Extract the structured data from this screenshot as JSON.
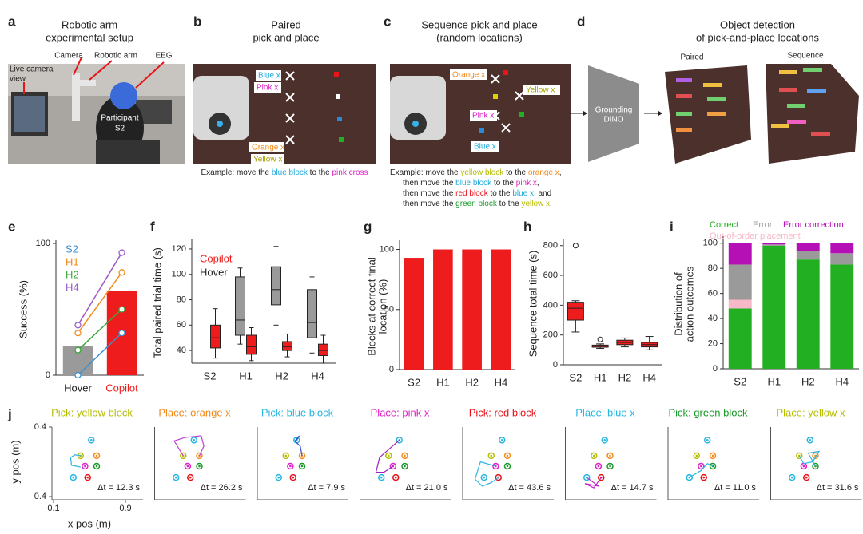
{
  "panels": {
    "a": {
      "letter": "a",
      "title": [
        "Robotic arm",
        "experimental setup"
      ],
      "labels": {
        "camera": "Camera",
        "robotic_arm": "Robotic arm",
        "eeg": "EEG",
        "live_view": [
          "Live camera",
          "view"
        ],
        "participant": [
          "Participant",
          "S2"
        ]
      }
    },
    "b": {
      "letter": "b",
      "title": [
        "Paired",
        "pick and place"
      ],
      "photo_labels": [
        "Blue x",
        "Pink x",
        "Orange x",
        "Yellow x"
      ],
      "caption": [
        [
          {
            "text": "Example: move the ",
            "color": "#222222"
          },
          {
            "text": "blue block",
            "color": "#1fa9dc"
          },
          {
            "text": " to the ",
            "color": "#222222"
          },
          {
            "text": "pink cross",
            "color": "#e020c8"
          }
        ]
      ]
    },
    "c": {
      "letter": "c",
      "title": [
        "Sequence pick and place",
        "(random locations)"
      ],
      "photo_labels": [
        "Orange x",
        "Yellow x",
        "Pink x",
        "Blue x"
      ],
      "caption": [
        [
          {
            "text": "Example: move the ",
            "color": "#222222"
          },
          {
            "text": "yellow block",
            "color": "#b5bd00"
          },
          {
            "text": " to the ",
            "color": "#222222"
          },
          {
            "text": "orange x",
            "color": "#f28a1c"
          },
          {
            "text": ",",
            "color": "#222222"
          }
        ],
        [
          {
            "text": "then move the ",
            "color": "#222222"
          },
          {
            "text": "blue block",
            "color": "#1fa9dc"
          },
          {
            "text": " to the ",
            "color": "#222222"
          },
          {
            "text": "pink x",
            "color": "#e020c8"
          },
          {
            "text": ",",
            "color": "#222222"
          }
        ],
        [
          {
            "text": "then move the ",
            "color": "#222222"
          },
          {
            "text": "red block",
            "color": "#e8141a"
          },
          {
            "text": " to the ",
            "color": "#222222"
          },
          {
            "text": "blue x",
            "color": "#1fa9dc"
          },
          {
            "text": ", and",
            "color": "#222222"
          }
        ],
        [
          {
            "text": "then move the ",
            "color": "#222222"
          },
          {
            "text": "green block",
            "color": "#1a9a2a"
          },
          {
            "text": " to the ",
            "color": "#222222"
          },
          {
            "text": "yellow x",
            "color": "#b5bd00"
          },
          {
            "text": ".",
            "color": "#222222"
          }
        ]
      ]
    },
    "d": {
      "letter": "d",
      "title": [
        "Object detection",
        "of pick-and-place locations"
      ],
      "model": [
        "Grounding",
        "DINO"
      ],
      "image_labels": [
        "Paired",
        "Sequence"
      ]
    }
  },
  "chart_data": [
    {
      "letter": "e",
      "type": "bar",
      "ylabel": "Success (%)",
      "ylim": [
        0,
        100
      ],
      "yticks": [
        0,
        100
      ],
      "categories": [
        "Hover",
        "Copilot"
      ],
      "values": [
        22,
        64
      ],
      "colors": [
        "#9a9a9a",
        "#ee1c1c"
      ],
      "label_colors": [
        "#222222",
        "#ee1c1c"
      ],
      "series": [
        {
          "name": "S2",
          "color": "#3a8fd0",
          "values": [
            0,
            32
          ]
        },
        {
          "name": "H1",
          "color": "#f28a1c",
          "values": [
            32,
            78
          ]
        },
        {
          "name": "H2",
          "color": "#3aa83a",
          "values": [
            19,
            50
          ]
        },
        {
          "name": "H4",
          "color": "#9b5bc9",
          "values": [
            38,
            93
          ]
        }
      ]
    },
    {
      "letter": "f",
      "type": "box",
      "ylabel": "Total paired trial time (s)",
      "ylim": [
        30,
        125
      ],
      "yticks": [
        40,
        60,
        80,
        100,
        120
      ],
      "categories": [
        "S2",
        "H1",
        "H2",
        "H4"
      ],
      "series": [
        {
          "name": "Hover",
          "color": "#9a9a9a",
          "min": [
            null,
            45,
            60,
            38
          ],
          "q1": [
            null,
            52,
            76,
            50
          ],
          "median": [
            null,
            64,
            88,
            62
          ],
          "q3": [
            null,
            98,
            106,
            88
          ],
          "max": [
            null,
            105,
            122,
            98
          ]
        },
        {
          "name": "Copilot",
          "color": "#ee1c1c",
          "min": [
            34,
            32,
            35,
            30
          ],
          "q1": [
            42,
            37,
            40,
            36
          ],
          "median": [
            50,
            43,
            43,
            40
          ],
          "q3": [
            60,
            52,
            47,
            45
          ],
          "max": [
            73,
            58,
            53,
            52
          ]
        }
      ]
    },
    {
      "letter": "g",
      "type": "bar",
      "ylabel": [
        "Blocks at correct final",
        "location (%)"
      ],
      "ylim": [
        0,
        105
      ],
      "yticks": [
        0,
        50,
        100
      ],
      "categories": [
        "S2",
        "H1",
        "H2",
        "H4"
      ],
      "values": [
        93,
        100,
        100,
        100
      ],
      "color": "#ee1c1c"
    },
    {
      "letter": "h",
      "type": "box",
      "ylabel": "Sequence total time (s)",
      "ylim": [
        0,
        820
      ],
      "yticks": [
        0,
        200,
        400,
        600,
        800
      ],
      "categories": [
        "S2",
        "H1",
        "H2",
        "H4"
      ],
      "series": [
        {
          "color": "#ee1c1c",
          "min": [
            220,
            110,
            120,
            100
          ],
          "q1": [
            300,
            118,
            135,
            120
          ],
          "median": [
            380,
            125,
            150,
            135
          ],
          "q3": [
            420,
            132,
            165,
            150
          ],
          "max": [
            430,
            140,
            180,
            190
          ],
          "outliers": [
            [
              800
            ],
            [
              170
            ],
            [],
            []
          ]
        }
      ]
    },
    {
      "letter": "i",
      "type": "bar",
      "stacked": true,
      "ylabel": [
        "Distribution of",
        "action outcomes"
      ],
      "ylim": [
        0,
        103
      ],
      "yticks": [
        0,
        20,
        40,
        60,
        80,
        100
      ],
      "categories": [
        "S2",
        "H1",
        "H2",
        "H4"
      ],
      "series": [
        {
          "name": "Correct",
          "color": "#22b022",
          "values": [
            48,
            98,
            87,
            83
          ]
        },
        {
          "name": "Out-of-order placement",
          "color": "#f7b8c8",
          "values": [
            7,
            0,
            0,
            0
          ]
        },
        {
          "name": "Error",
          "color": "#9a9a9a",
          "values": [
            28,
            1,
            7,
            9
          ]
        },
        {
          "name": "Error correction",
          "color": "#b510b5",
          "values": [
            17,
            1,
            6,
            8
          ]
        }
      ]
    },
    {
      "letter": "j",
      "type": "line",
      "xlabel": "x pos (m)",
      "ylabel": "y pos (m)",
      "xlim": [
        0.1,
        0.9
      ],
      "ylim": [
        -0.4,
        0.4
      ],
      "xticks": [
        0.1,
        0.9
      ],
      "yticks": [
        0.4,
        {
          "value": -0.4,
          "label": "−0.4"
        }
      ],
      "targets": {
        "x": [
          0.52,
          0.4,
          0.58,
          0.45,
          0.58,
          0.48,
          0.32
        ],
        "y": [
          0.25,
          0.07,
          0.07,
          -0.05,
          -0.05,
          -0.18,
          -0.18
        ],
        "colors": [
          "#29b6e0",
          "#b5bd00",
          "#f28a1c",
          "#e020c8",
          "#1a9a2a",
          "#e8141a",
          "#29b6e0"
        ]
      },
      "panels": [
        {
          "title": "Pick: yellow block",
          "color": "#b5bd00",
          "annotation": "Δt = 12.3 s",
          "line_color": "#29b6e0",
          "x": [
            0.4,
            0.3,
            0.29,
            0.34,
            0.4
          ],
          "y": [
            -0.06,
            -0.04,
            0.05,
            0.08,
            0.07
          ]
        },
        {
          "title": "Place: orange x",
          "color": "#f28a1c",
          "annotation": "Δt = 26.2 s",
          "line_color": "#c040d8",
          "x": [
            0.4,
            0.3,
            0.42,
            0.6,
            0.63,
            0.58
          ],
          "y": [
            0.07,
            0.24,
            0.28,
            0.3,
            0.18,
            0.07
          ]
        },
        {
          "title": "Pick: blue block",
          "color": "#29b6e0",
          "annotation": "Δt = 7.9 s",
          "line_color": "#3050d0",
          "x": [
            0.58,
            0.56,
            0.5,
            0.55,
            0.52
          ],
          "y": [
            0.07,
            0.18,
            0.24,
            0.3,
            0.25
          ]
        },
        {
          "title": "Place: pink x",
          "color": "#e020c8",
          "annotation": "Δt = 21.0 s",
          "line_color": "#a020c0",
          "x": [
            0.52,
            0.3,
            0.26,
            0.35,
            0.45
          ],
          "y": [
            0.25,
            0.05,
            -0.12,
            -0.12,
            -0.05
          ]
        },
        {
          "title": "Pick: red block",
          "color": "#e8141a",
          "annotation": "Δt = 43.6 s",
          "line_color": "#29b6e0",
          "x": [
            0.45,
            0.28,
            0.22,
            0.3,
            0.4,
            0.48
          ],
          "y": [
            -0.05,
            0.0,
            -0.2,
            -0.28,
            -0.24,
            -0.18
          ]
        },
        {
          "title": "Place: blue x",
          "color": "#29b6e0",
          "annotation": "Δt = 14.7 s",
          "line_color": "#c020c8",
          "x": [
            0.48,
            0.4,
            0.3,
            0.45,
            0.32
          ],
          "y": [
            -0.18,
            -0.3,
            -0.25,
            -0.28,
            -0.18
          ]
        },
        {
          "title": "Pick: green block",
          "color": "#1a9a2a",
          "annotation": "Δt = 11.0 s",
          "line_color": "#29b6e0",
          "x": [
            0.32,
            0.45,
            0.52,
            0.58
          ],
          "y": [
            -0.18,
            -0.1,
            -0.02,
            -0.05
          ]
        },
        {
          "title": "Place: yellow x",
          "color": "#b5bd00",
          "annotation": "Δt = 31.6 s",
          "line_color": "#29b6e0",
          "x": [
            0.58,
            0.5,
            0.62,
            0.55,
            0.45,
            0.4
          ],
          "y": [
            -0.05,
            0.1,
            0.12,
            0.0,
            -0.02,
            0.07
          ]
        }
      ]
    }
  ]
}
